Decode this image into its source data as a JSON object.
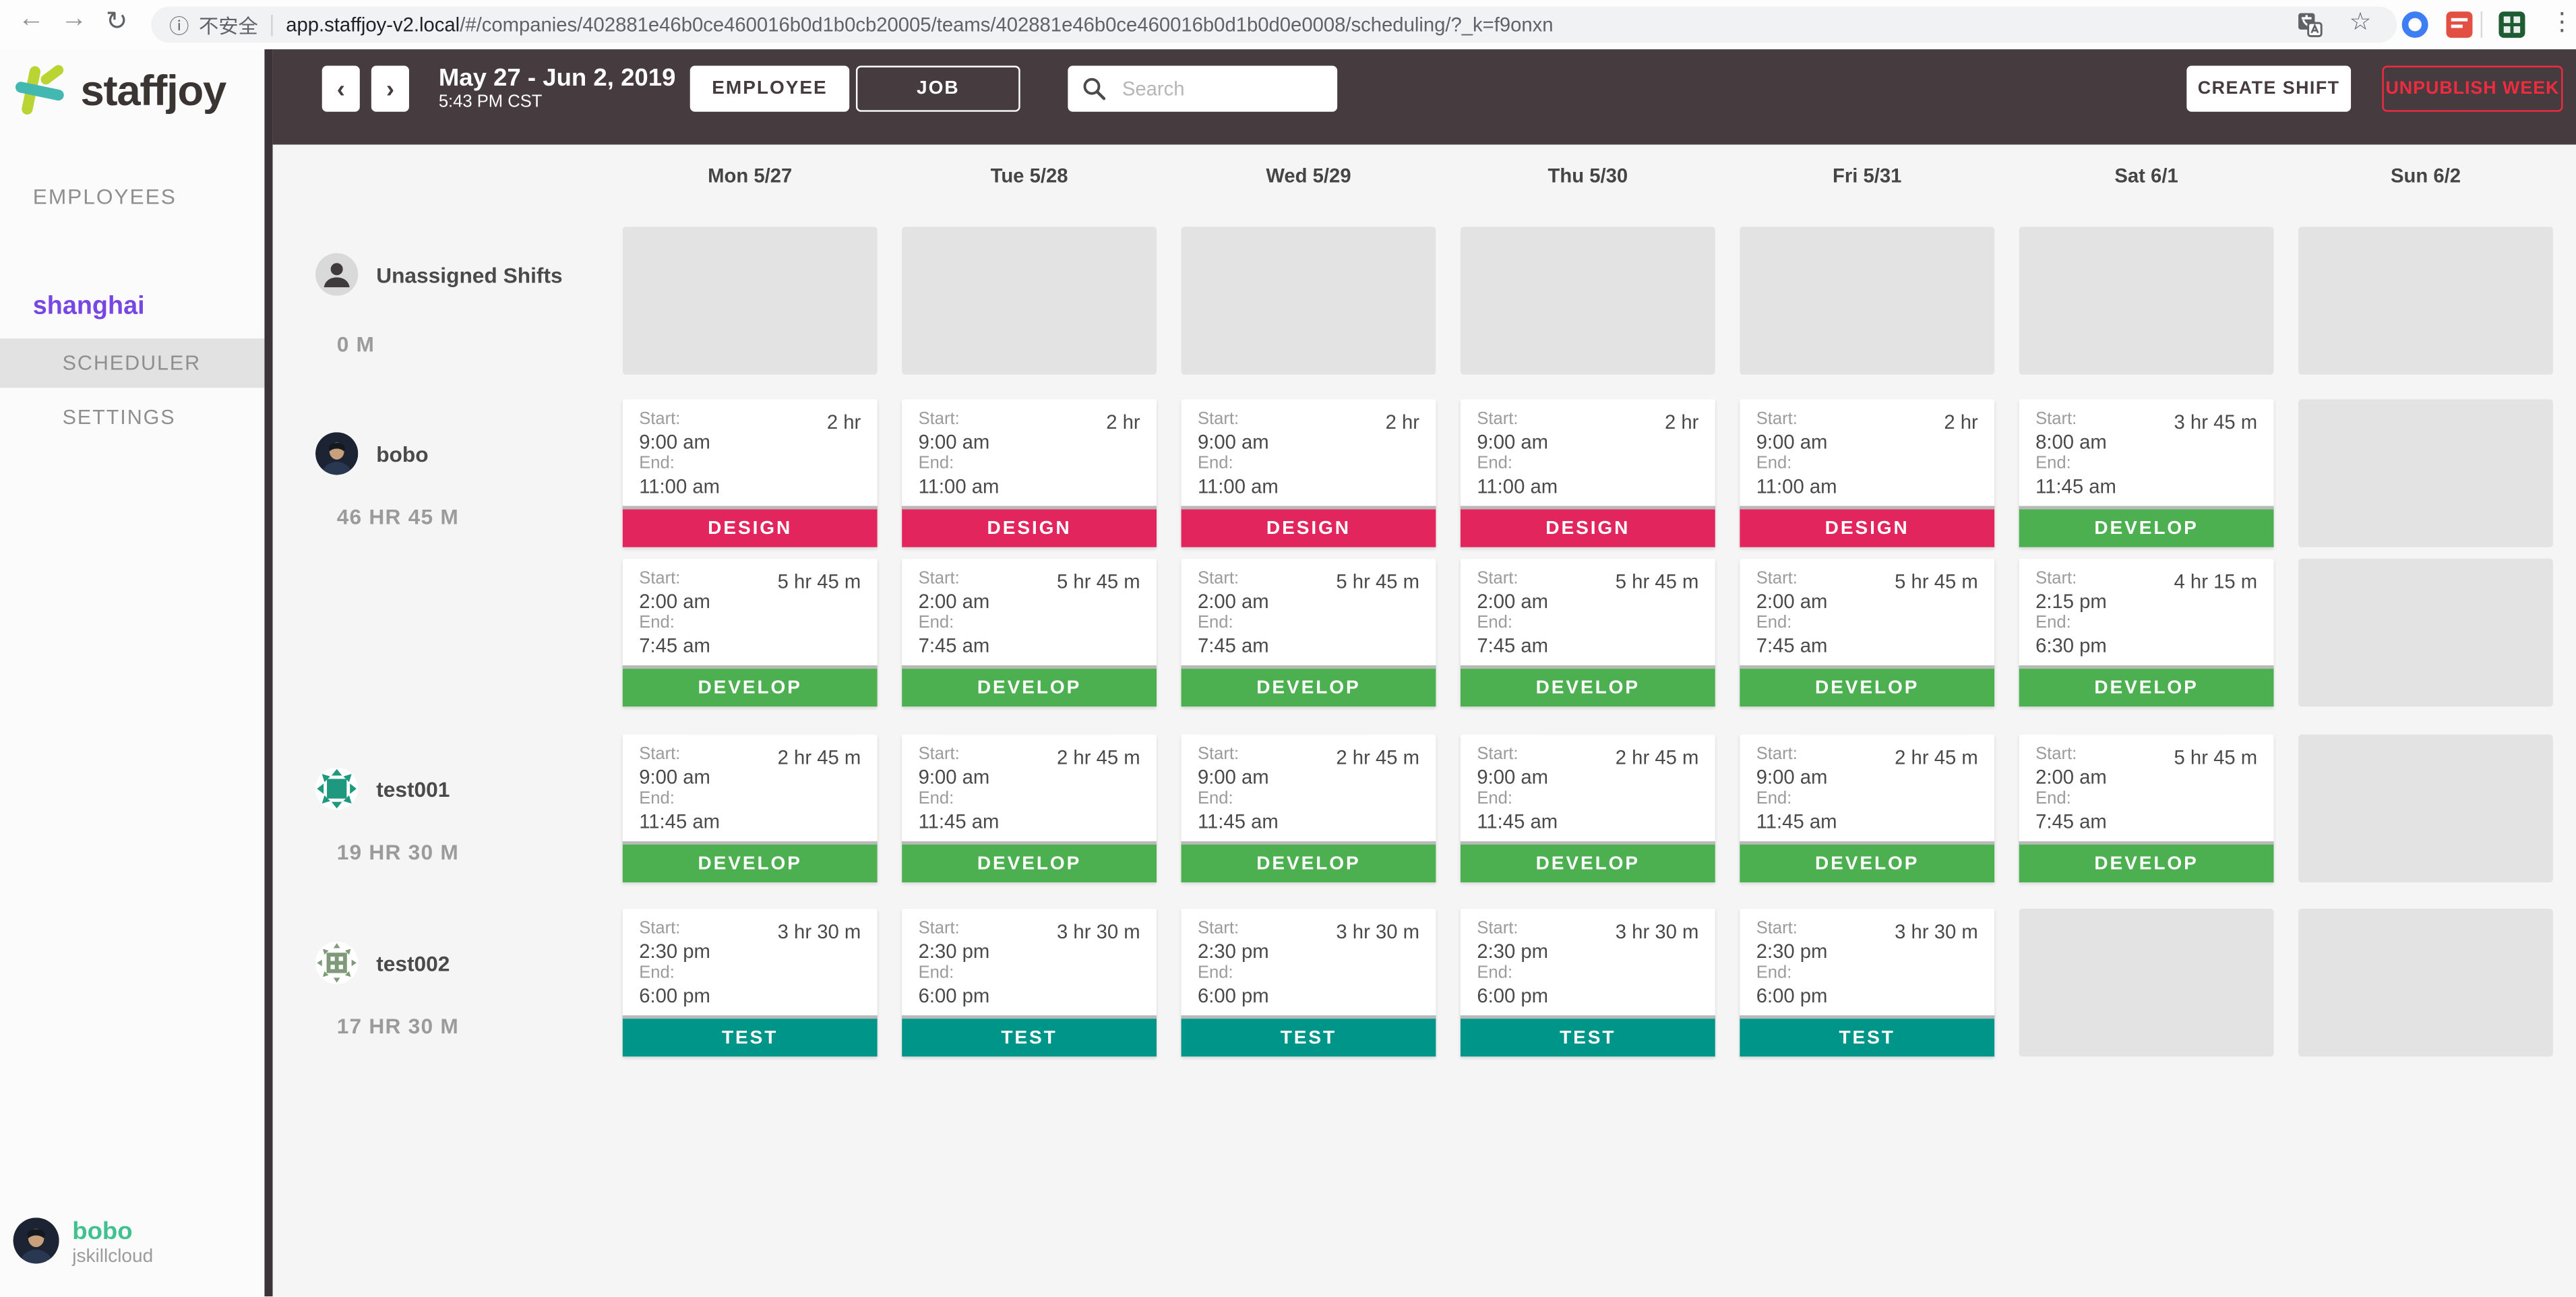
{
  "browser": {
    "security_label": "不安全",
    "url_host": "app.staffjoy-v2.local",
    "url_path": "/#/companies/402881e46b0ce460016b0d1b0cb20005/teams/402881e46b0ce460016b0d1b0d0e0008/scheduling/?_k=f9onxn"
  },
  "sidebar": {
    "brand": "staffjoy",
    "employees_label": "EMPLOYEES",
    "team_name": "shanghai",
    "scheduler_label": "SCHEDULER",
    "settings_label": "SETTINGS",
    "user": {
      "name": "bobo",
      "company": "jskillcloud"
    }
  },
  "toolbar": {
    "prev_icon": "‹",
    "next_icon": "›",
    "date_range": "May 27 - Jun 2, 2019",
    "current_time": "5:43 PM CST",
    "employee_button": "EMPLOYEE",
    "job_button": "JOB",
    "search_placeholder": "Search",
    "create_shift_button": "CREATE SHIFT",
    "unpublish_week_button": "UNPUBLISH WEEK"
  },
  "schedule": {
    "days": [
      "Mon 5/27",
      "Tue 5/28",
      "Wed 5/29",
      "Thu 5/30",
      "Fri 5/31",
      "Sat 6/1",
      "Sun 6/2"
    ],
    "labels": {
      "start": "Start:",
      "end": "End:"
    },
    "rows": [
      {
        "name": "Unassigned Shifts",
        "hours": "0 M",
        "avatar": "person",
        "shift_rows": [
          [
            null,
            null,
            null,
            null,
            null,
            null,
            null
          ]
        ]
      },
      {
        "name": "bobo",
        "hours": "46 HR 45 M",
        "avatar": "photo",
        "shift_rows": [
          [
            {
              "start": "9:00 am",
              "end": "11:00 am",
              "duration": "2 hr",
              "job": "DESIGN"
            },
            {
              "start": "9:00 am",
              "end": "11:00 am",
              "duration": "2 hr",
              "job": "DESIGN"
            },
            {
              "start": "9:00 am",
              "end": "11:00 am",
              "duration": "2 hr",
              "job": "DESIGN"
            },
            {
              "start": "9:00 am",
              "end": "11:00 am",
              "duration": "2 hr",
              "job": "DESIGN"
            },
            {
              "start": "9:00 am",
              "end": "11:00 am",
              "duration": "2 hr",
              "job": "DESIGN"
            },
            {
              "start": "8:00 am",
              "end": "11:45 am",
              "duration": "3 hr 45 m",
              "job": "DEVELOP"
            },
            null
          ],
          [
            {
              "start": "2:00 am",
              "end": "7:45 am",
              "duration": "5 hr 45 m",
              "job": "DEVELOP"
            },
            {
              "start": "2:00 am",
              "end": "7:45 am",
              "duration": "5 hr 45 m",
              "job": "DEVELOP"
            },
            {
              "start": "2:00 am",
              "end": "7:45 am",
              "duration": "5 hr 45 m",
              "job": "DEVELOP"
            },
            {
              "start": "2:00 am",
              "end": "7:45 am",
              "duration": "5 hr 45 m",
              "job": "DEVELOP"
            },
            {
              "start": "2:00 am",
              "end": "7:45 am",
              "duration": "5 hr 45 m",
              "job": "DEVELOP"
            },
            {
              "start": "2:15 pm",
              "end": "6:30 pm",
              "duration": "4 hr 15 m",
              "job": "DEVELOP"
            },
            null
          ]
        ]
      },
      {
        "name": "test001",
        "hours": "19 HR 30 M",
        "avatar": "identicon-teal",
        "shift_rows": [
          [
            {
              "start": "9:00 am",
              "end": "11:45 am",
              "duration": "2 hr 45 m",
              "job": "DEVELOP"
            },
            {
              "start": "9:00 am",
              "end": "11:45 am",
              "duration": "2 hr 45 m",
              "job": "DEVELOP"
            },
            {
              "start": "9:00 am",
              "end": "11:45 am",
              "duration": "2 hr 45 m",
              "job": "DEVELOP"
            },
            {
              "start": "9:00 am",
              "end": "11:45 am",
              "duration": "2 hr 45 m",
              "job": "DEVELOP"
            },
            {
              "start": "9:00 am",
              "end": "11:45 am",
              "duration": "2 hr 45 m",
              "job": "DEVELOP"
            },
            {
              "start": "2:00 am",
              "end": "7:45 am",
              "duration": "5 hr 45 m",
              "job": "DEVELOP"
            },
            null
          ]
        ]
      },
      {
        "name": "test002",
        "hours": "17 HR 30 M",
        "avatar": "identicon-sage",
        "shift_rows": [
          [
            {
              "start": "2:30 pm",
              "end": "6:00 pm",
              "duration": "3 hr 30 m",
              "job": "TEST"
            },
            {
              "start": "2:30 pm",
              "end": "6:00 pm",
              "duration": "3 hr 30 m",
              "job": "TEST"
            },
            {
              "start": "2:30 pm",
              "end": "6:00 pm",
              "duration": "3 hr 30 m",
              "job": "TEST"
            },
            {
              "start": "2:30 pm",
              "end": "6:00 pm",
              "duration": "3 hr 30 m",
              "job": "TEST"
            },
            {
              "start": "2:30 pm",
              "end": "6:00 pm",
              "duration": "3 hr 30 m",
              "job": "TEST"
            },
            null,
            null
          ]
        ]
      }
    ]
  },
  "colors": {
    "toolbar_bg": "#463b3e",
    "content_bg": "#f5f5f5",
    "placeholder": "#e3e3e3",
    "accent_purple": "#7747e3",
    "accent_teal": "#41c18e",
    "danger_red": "#ef2b3f",
    "jobs": {
      "DESIGN": "#e2265d",
      "DEVELOP": "#4caf50",
      "TEST": "#009589"
    }
  }
}
